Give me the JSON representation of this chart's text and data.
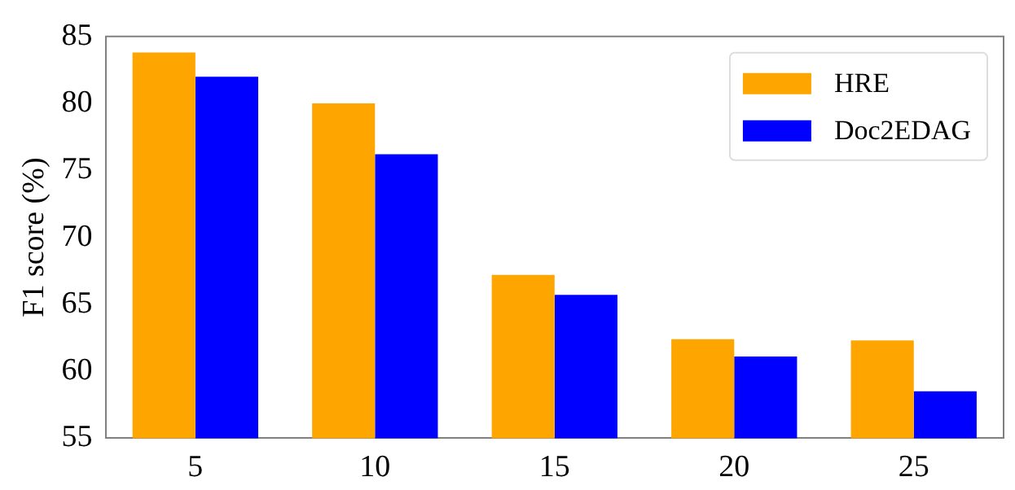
{
  "chart_data": {
    "type": "bar",
    "ylabel": "F1 score (%)",
    "categories": [
      "5",
      "10",
      "15",
      "20",
      "25"
    ],
    "series": [
      {
        "name": "HRE",
        "color": "#ffa500",
        "values": [
          83.8,
          80.0,
          67.2,
          62.4,
          62.3
        ]
      },
      {
        "name": "Doc2EDAG",
        "color": "#0000ff",
        "values": [
          82.0,
          76.2,
          65.7,
          61.1,
          58.5
        ]
      }
    ],
    "ylim": [
      55,
      85
    ],
    "yticks": [
      55,
      60,
      65,
      70,
      75,
      80,
      85
    ],
    "grid": false,
    "legend": "top right"
  }
}
